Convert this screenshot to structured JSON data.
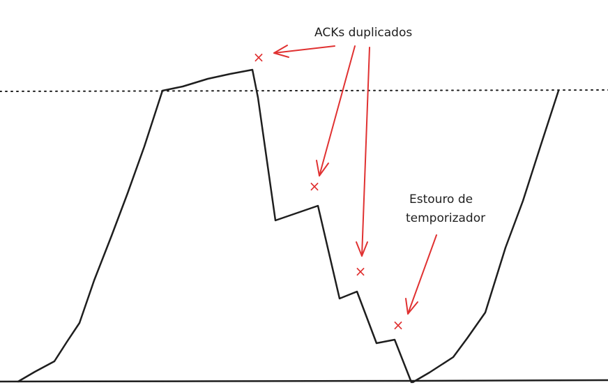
{
  "annotations": {
    "duplicate_acks": "ACKs duplicados",
    "timeout_line1": "Estouro de",
    "timeout_line2": "temporizador"
  },
  "markers": {
    "loss_symbol": "×"
  },
  "colors": {
    "curve": "#1e1e1e",
    "axis": "#1e1e1e",
    "threshold": "#1e1e1e",
    "annotation": "#e03131"
  },
  "icons": {
    "arrowhead": "open-arrowhead-icon",
    "loss_marker": "x-mark-icon"
  }
}
